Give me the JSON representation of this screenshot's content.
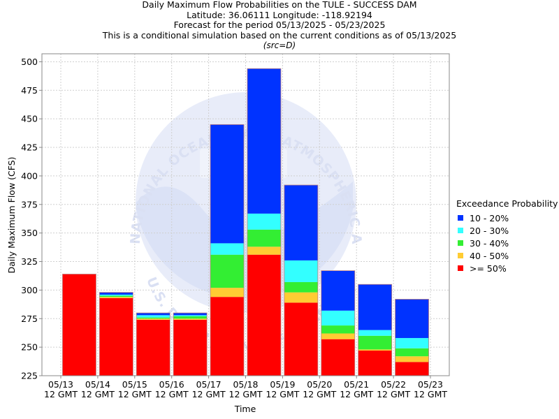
{
  "titles": {
    "line1": "Daily Maximum Flow Probabilities on the TULE - SUCCESS DAM",
    "line2": "Latitude: 36.06111 Longitude: -118.92194",
    "line3": "Forecast for the period 05/13/2025 - 05/23/2025",
    "line4": "This is a conditional simulation based on the current conditions as of 05/13/2025",
    "line5": "(src=D)"
  },
  "watermark": {
    "text_top": "NATIONAL OCEANIC AND ATMOSPHERIC ADMINISTRATION",
    "text_bottom": "U.S. DEPARTMENT OF COMMERCE"
  },
  "legend": {
    "title": "Exceedance Probability",
    "items": [
      {
        "label": "10 - 20%",
        "color": "#0033ff"
      },
      {
        "label": "20 - 30%",
        "color": "#33ffff"
      },
      {
        "label": "30 - 40%",
        "color": "#33ee33"
      },
      {
        "label": "40 - 50%",
        "color": "#ffcc33"
      },
      {
        "label": ">= 50%",
        "color": "#ff0000"
      }
    ]
  },
  "chart_data": {
    "type": "bar",
    "xlabel": "Time",
    "ylabel": "Daily Maximum Flow (CFS)",
    "ylim": [
      225,
      507
    ],
    "yticks": [
      225,
      250,
      275,
      300,
      325,
      350,
      375,
      400,
      425,
      450,
      475,
      500
    ],
    "xticks": [
      "05/13",
      "05/14",
      "05/15",
      "05/16",
      "05/17",
      "05/18",
      "05/19",
      "05/20",
      "05/21",
      "05/22",
      "05/23"
    ],
    "xtick_sub": "12 GMT",
    "grid": true,
    "legend_position": "right",
    "bars": [
      {
        "date": "05/13",
        "ge50": 314,
        "p40_50": 314,
        "p30_40": 314,
        "p20_30": 314,
        "p10_20": 314
      },
      {
        "date": "05/14",
        "ge50": 293,
        "p40_50": 294,
        "p30_40": 295,
        "p20_30": 296,
        "p10_20": 298
      },
      {
        "date": "05/15",
        "ge50": 274,
        "p40_50": 275,
        "p30_40": 276,
        "p20_30": 278,
        "p10_20": 280
      },
      {
        "date": "05/16",
        "ge50": 274,
        "p40_50": 275,
        "p30_40": 277,
        "p20_30": 278,
        "p10_20": 280
      },
      {
        "date": "05/17",
        "ge50": 294,
        "p40_50": 302,
        "p30_40": 331,
        "p20_30": 341,
        "p10_20": 445
      },
      {
        "date": "05/18",
        "ge50": 331,
        "p40_50": 338,
        "p30_40": 353,
        "p20_30": 367,
        "p10_20": 494
      },
      {
        "date": "05/19",
        "ge50": 289,
        "p40_50": 298,
        "p30_40": 307,
        "p20_30": 326,
        "p10_20": 392
      },
      {
        "date": "05/20",
        "ge50": 257,
        "p40_50": 262,
        "p30_40": 269,
        "p20_30": 282,
        "p10_20": 317
      },
      {
        "date": "05/21",
        "ge50": 247,
        "p40_50": 248,
        "p30_40": 260,
        "p20_30": 265,
        "p10_20": 305
      },
      {
        "date": "05/22",
        "ge50": 237,
        "p40_50": 242,
        "p30_40": 249,
        "p20_30": 258,
        "p10_20": 292
      }
    ]
  }
}
